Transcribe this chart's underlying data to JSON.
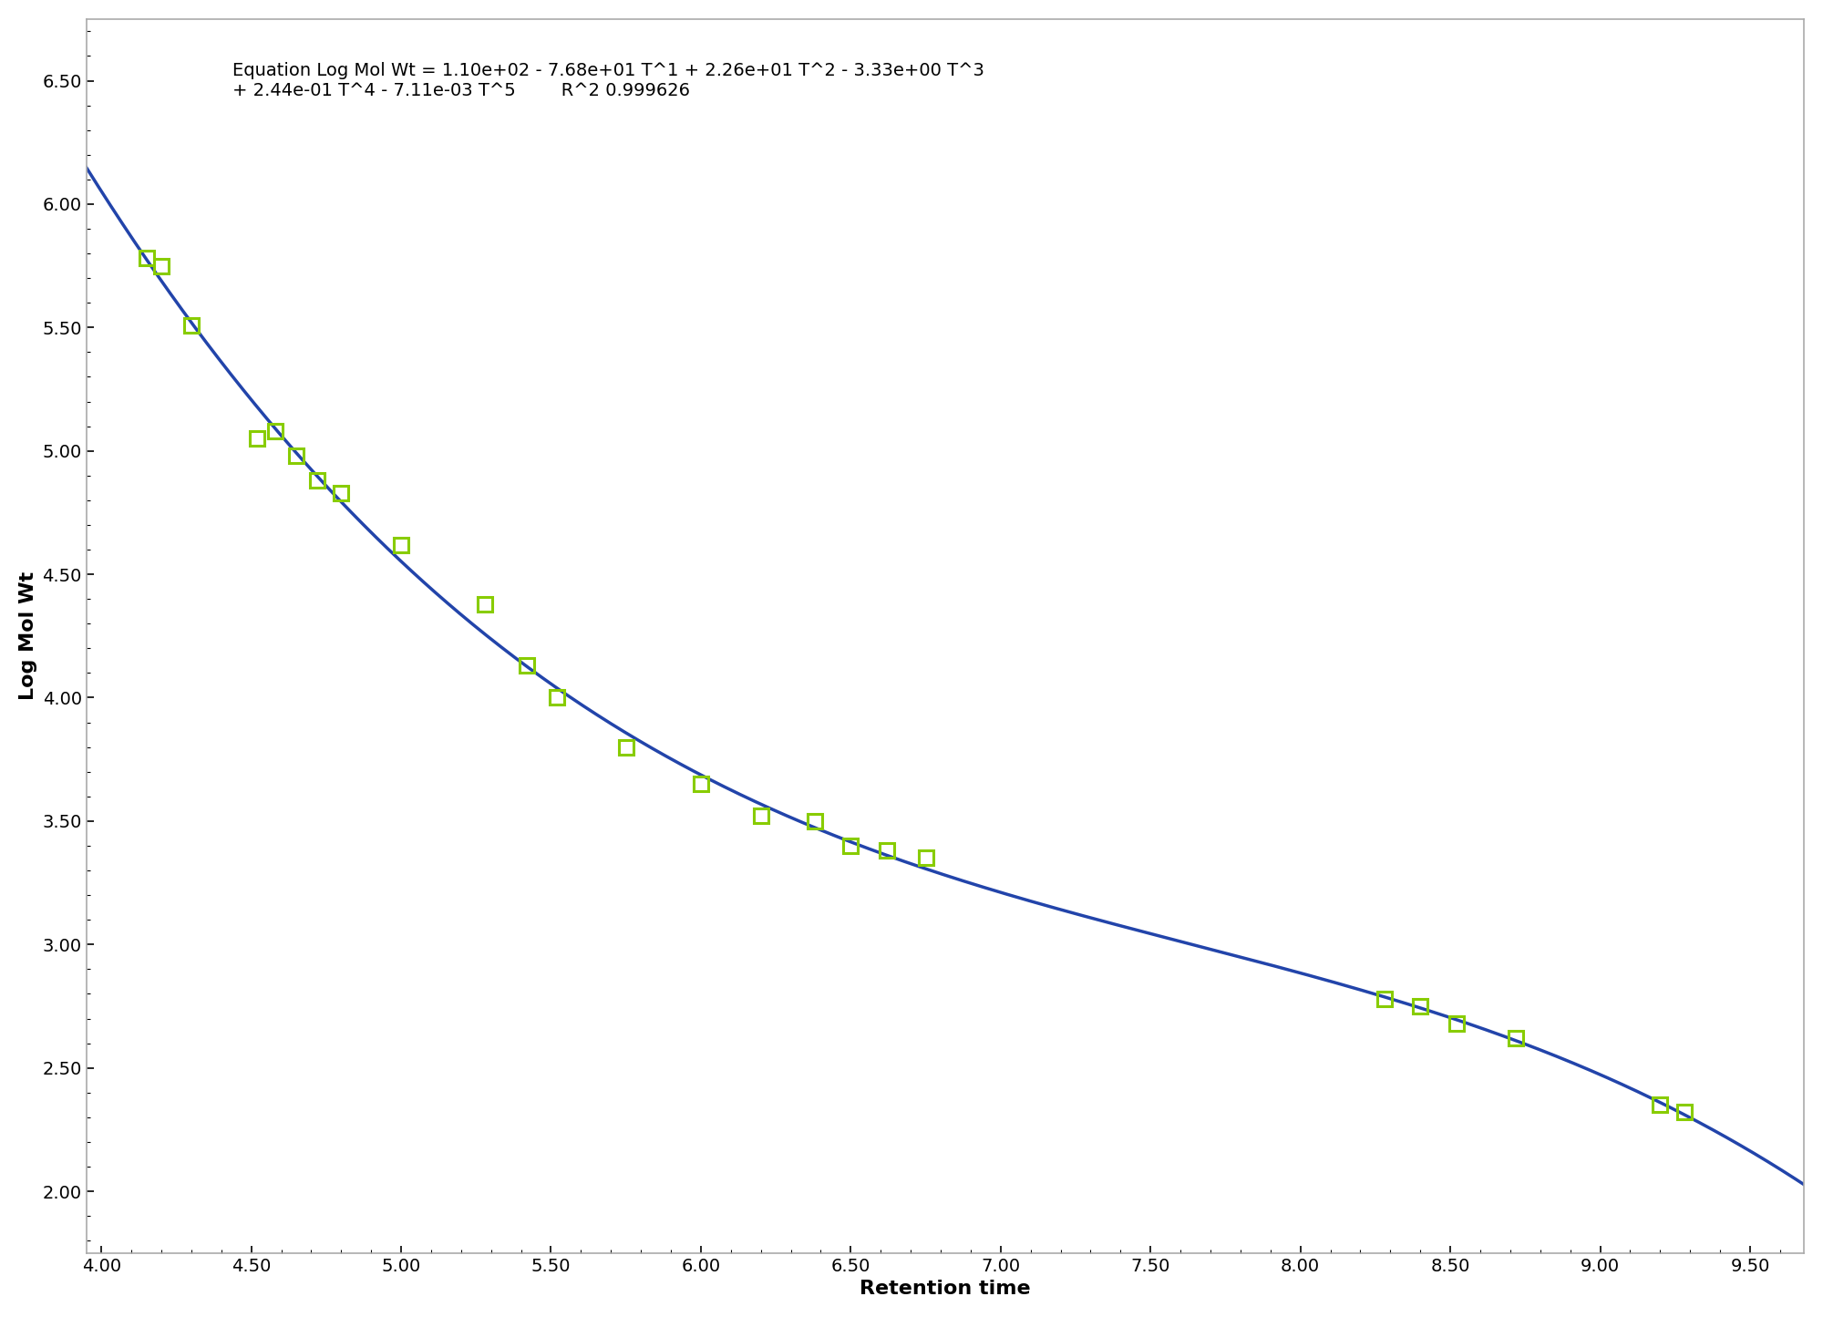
{
  "equation_line1": "Equation Log Mol Wt = 1.10e+02 - 7.68e+01 T^1 + 2.26e+01 T^2 - 3.33e+00 T^3",
  "equation_line2": "+ 2.44e-01 T^4 - 7.11e-03 T^5",
  "r_squared": "R^2 0.999626",
  "data_points_x": [
    4.15,
    4.2,
    4.3,
    4.52,
    4.58,
    4.65,
    4.72,
    4.8,
    5.0,
    5.28,
    5.42,
    5.52,
    5.75,
    6.0,
    6.2,
    6.38,
    6.5,
    6.62,
    6.75,
    8.28,
    8.4,
    8.52,
    8.72,
    9.2,
    9.28
  ],
  "data_points_y": [
    5.78,
    5.75,
    5.51,
    5.05,
    5.08,
    4.98,
    4.88,
    4.83,
    4.62,
    4.38,
    4.13,
    4.0,
    3.8,
    3.65,
    3.52,
    3.5,
    3.4,
    3.38,
    3.35,
    2.78,
    2.75,
    2.68,
    2.62,
    2.35,
    2.32
  ],
  "xlabel": "Retention time",
  "ylabel": "Log Mol Wt",
  "xlim": [
    3.95,
    9.68
  ],
  "ylim": [
    1.75,
    6.75
  ],
  "xticks": [
    4.0,
    4.5,
    5.0,
    5.5,
    6.0,
    6.5,
    7.0,
    7.5,
    8.0,
    8.5,
    9.0,
    9.5
  ],
  "yticks": [
    2.0,
    2.5,
    3.0,
    3.5,
    4.0,
    4.5,
    5.0,
    5.5,
    6.0,
    6.5
  ],
  "line_color": "#2244aa",
  "marker_facecolor": "none",
  "marker_edge_color": "#88cc00",
  "background_color": "#ffffff",
  "annotation_fontsize": 14,
  "axis_label_fontsize": 16,
  "tick_label_fontsize": 14,
  "line_width": 2.5,
  "marker_size": 11
}
